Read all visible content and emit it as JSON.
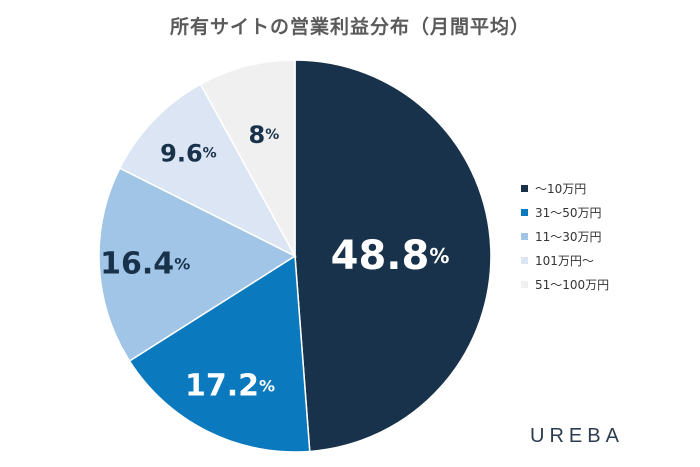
{
  "chart_data": {
    "type": "pie",
    "title": "所有サイトの営業利益分布（月間平均）",
    "slices": [
      {
        "label": "〜10万円",
        "num": "48.8",
        "value": 48.8,
        "color": "#17324a"
      },
      {
        "label": "31〜50万円",
        "num": "17.2",
        "value": 17.2,
        "color": "#0a79bd"
      },
      {
        "label": "11〜30万円",
        "num": "16.4",
        "value": 16.4,
        "color": "#a1c5e6"
      },
      {
        "label": "101万円〜",
        "num": "9.6",
        "value": 9.6,
        "color": "#dce5f3"
      },
      {
        "label": "51〜100万円",
        "num": "8",
        "value": 8,
        "color": "#f0f0f1"
      }
    ],
    "unit": "%",
    "legend_position": "right"
  },
  "brand": "UREBA"
}
